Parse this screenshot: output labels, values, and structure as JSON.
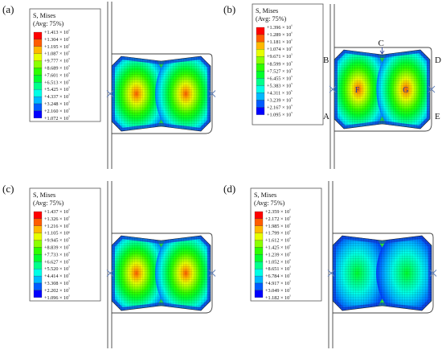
{
  "legend_title": [
    "S, Mises",
    "(Avg: 75%)"
  ],
  "panels": [
    {
      "id": "a",
      "label": "(a)",
      "values": [
        "+1.413 × 10⁶",
        "+1.304 × 10⁶",
        "+1.195 × 10⁶",
        "+1.087 × 10⁶",
        "+9.777 × 10⁵",
        "+8.689 × 10⁵",
        "+7.601 × 10⁵",
        "+6.513 × 10⁵",
        "+5.425 × 10⁵",
        "+4.337 × 10⁵",
        "+3.248 × 10⁵",
        "+2.160 × 10⁵",
        "+1.072 × 10⁵"
      ],
      "peak": 0.95
    },
    {
      "id": "b",
      "label": "(b)",
      "values": [
        "+1.396 × 10⁶",
        "+1.289 × 10⁶",
        "+1.181 × 10⁶",
        "+1.074 × 10⁶",
        "+9.671 × 10⁵",
        "+8.599 × 10⁵",
        "+7.527 × 10⁵",
        "+6.455 × 10⁵",
        "+5.383 × 10⁵",
        "+4.311 × 10⁵",
        "+3.239 × 10⁵",
        "+2.167 × 10⁵",
        "+1.095 × 10⁵"
      ],
      "peak": 0.95,
      "corners": {
        "A": "A",
        "B": "B",
        "C": "C",
        "D": "D",
        "E": "E",
        "F": "F",
        "G": "G"
      }
    },
    {
      "id": "c",
      "label": "(c)",
      "values": [
        "+1.437 × 10⁶",
        "+1.326 × 10⁶",
        "+1.216 × 10⁶",
        "+1.105 × 10⁶",
        "+9.945 × 10⁵",
        "+8.839 × 10⁵",
        "+7.733 × 10⁵",
        "+6.627 × 10⁵",
        "+5.520 × 10⁵",
        "+4.414 × 10⁵",
        "+3.308 × 10⁵",
        "+2.202 × 10⁵",
        "+1.096 × 10⁵"
      ],
      "peak": 0.92
    },
    {
      "id": "d",
      "label": "(d)",
      "values": [
        "+2.359 × 10⁶",
        "+2.172 × 10⁶",
        "+1.985 × 10⁶",
        "+1.799 × 10⁶",
        "+1.612 × 10⁶",
        "+1.425 × 10⁶",
        "+1.239 × 10⁶",
        "+1.052 × 10⁶",
        "+8.651 × 10⁵",
        "+6.784 × 10⁵",
        "+4.917 × 10⁵",
        "+3.049 × 10⁵",
        "+1.182 × 10⁵"
      ],
      "peak": 0.42
    }
  ],
  "colors": {
    "contour": [
      "#ff0000",
      "#ff5c00",
      "#ffb900",
      "#e6ff00",
      "#8bff00",
      "#2eff00",
      "#00ff2e",
      "#00ff8b",
      "#00ffe6",
      "#00b9ff",
      "#005cff",
      "#0000ff"
    ]
  }
}
